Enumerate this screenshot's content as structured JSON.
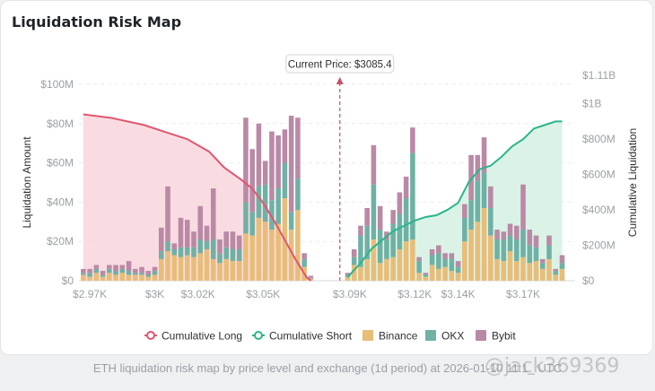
{
  "title": "Liquidation Risk Map",
  "caption": "ETH liquidation risk map by price level and exchange (1d period) at 2026-01-10 11:1_ UTC",
  "watermark": "@jack369369",
  "current_price_label": "Current Price: $3085.4",
  "colors": {
    "binance": "#e8bd78",
    "okx": "#6fb1a4",
    "bybit": "#b989a5",
    "long_line": "#e0566f",
    "long_fill": "#f8d6dd",
    "short_line": "#2bb58b",
    "short_fill": "#d7f2e4"
  },
  "chart_data": {
    "type": "bar",
    "stacked": true,
    "xlabel": "",
    "ylabel": "Liquidation Amount",
    "y2label": "Cumulative Liquidation",
    "current_price": 3085.4,
    "xlim": [
      2965,
      3194
    ],
    "ylim": [
      0,
      100000000
    ],
    "y2lim": [
      0,
      1110000000
    ],
    "x_ticks": [
      2970,
      3000,
      3020,
      3050,
      3090,
      3120,
      3140,
      3170
    ],
    "x_tick_labels": [
      "$2.97K",
      "$3K",
      "$3.02K",
      "$3.05K",
      "$3.09K",
      "$3.12K",
      "$3.14K",
      "$3.17K"
    ],
    "y_ticks": [
      0,
      20000000,
      40000000,
      60000000,
      80000000,
      100000000
    ],
    "y_tick_labels": [
      "$0",
      "$20M",
      "$40M",
      "$60M",
      "$80M",
      "$100M"
    ],
    "y2_ticks": [
      0,
      200000000,
      400000000,
      600000000,
      800000000,
      1000000000,
      1110000000
    ],
    "y2_tick_labels": [
      "$0",
      "$200M",
      "$400M",
      "$600M",
      "$800M",
      "$1B",
      "$1.11B"
    ],
    "legend": [
      "Cumulative Long",
      "Cumulative Short",
      "Binance",
      "OKX",
      "Bybit"
    ],
    "legend_position": "bottom",
    "grid": true,
    "bars": [
      {
        "x": 2967,
        "binance": 3,
        "okx": 1,
        "bybit": 2
      },
      {
        "x": 2970,
        "binance": 2,
        "okx": 2,
        "bybit": 2
      },
      {
        "x": 2973,
        "binance": 4,
        "okx": 2,
        "bybit": 2
      },
      {
        "x": 2976,
        "binance": 2,
        "okx": 1,
        "bybit": 2
      },
      {
        "x": 2979,
        "binance": 4,
        "okx": 2,
        "bybit": 2
      },
      {
        "x": 2982,
        "binance": 3,
        "okx": 2,
        "bybit": 3
      },
      {
        "x": 2985,
        "binance": 4,
        "okx": 2,
        "bybit": 2
      },
      {
        "x": 2988,
        "binance": 3,
        "okx": 2,
        "bybit": 5
      },
      {
        "x": 2991,
        "binance": 3,
        "okx": 1,
        "bybit": 2
      },
      {
        "x": 2994,
        "binance": 3,
        "okx": 1,
        "bybit": 3
      },
      {
        "x": 2997,
        "binance": 2,
        "okx": 1,
        "bybit": 2
      },
      {
        "x": 3000,
        "binance": 3,
        "okx": 2,
        "bybit": 2
      },
      {
        "x": 3003,
        "binance": 11,
        "okx": 4,
        "bybit": 12
      },
      {
        "x": 3006,
        "binance": 15,
        "okx": 5,
        "bybit": 28
      },
      {
        "x": 3009,
        "binance": 13,
        "okx": 3,
        "bybit": 3
      },
      {
        "x": 3012,
        "binance": 12,
        "okx": 5,
        "bybit": 15
      },
      {
        "x": 3015,
        "binance": 13,
        "okx": 4,
        "bybit": 14
      },
      {
        "x": 3018,
        "binance": 12,
        "okx": 5,
        "bybit": 8
      },
      {
        "x": 3021,
        "binance": 14,
        "okx": 7,
        "bybit": 17
      },
      {
        "x": 3024,
        "binance": 16,
        "okx": 4,
        "bybit": 8
      },
      {
        "x": 3027,
        "binance": 11,
        "okx": 10,
        "bybit": 26
      },
      {
        "x": 3030,
        "binance": 9,
        "okx": 5,
        "bybit": 7
      },
      {
        "x": 3033,
        "binance": 11,
        "okx": 6,
        "bybit": 8
      },
      {
        "x": 3036,
        "binance": 10,
        "okx": 6,
        "bybit": 9
      },
      {
        "x": 3039,
        "binance": 10,
        "okx": 6,
        "bybit": 7
      },
      {
        "x": 3042,
        "binance": 24,
        "okx": 16,
        "bybit": 43
      },
      {
        "x": 3045,
        "binance": 23,
        "okx": 12,
        "bybit": 32
      },
      {
        "x": 3048,
        "binance": 32,
        "okx": 16,
        "bybit": 32
      },
      {
        "x": 3051,
        "binance": 30,
        "okx": 19,
        "bybit": 12
      },
      {
        "x": 3054,
        "binance": 26,
        "okx": 15,
        "bybit": 35
      },
      {
        "x": 3057,
        "binance": 29,
        "okx": 18,
        "bybit": 27
      },
      {
        "x": 3060,
        "binance": 42,
        "okx": 18,
        "bybit": 17
      },
      {
        "x": 3063,
        "binance": 26,
        "okx": 9,
        "bybit": 49
      },
      {
        "x": 3066,
        "binance": 36,
        "okx": 16,
        "bybit": 31
      },
      {
        "x": 3069,
        "binance": 7,
        "okx": 4,
        "bybit": 3
      },
      {
        "x": 3072,
        "binance": 1,
        "okx": 0.5,
        "bybit": 1
      },
      {
        "x": 3089,
        "binance": 2,
        "okx": 1,
        "bybit": 1
      },
      {
        "x": 3092,
        "binance": 8,
        "okx": 4,
        "bybit": 4
      },
      {
        "x": 3095,
        "binance": 7,
        "okx": 16,
        "bybit": 5
      },
      {
        "x": 3098,
        "binance": 11,
        "okx": 17,
        "bybit": 9
      },
      {
        "x": 3101,
        "binance": 21,
        "okx": 28,
        "bybit": 20
      },
      {
        "x": 3104,
        "binance": 9,
        "okx": 17,
        "bybit": 12
      },
      {
        "x": 3107,
        "binance": 11,
        "okx": 10,
        "bybit": 4
      },
      {
        "x": 3110,
        "binance": 12,
        "okx": 17,
        "bybit": 7
      },
      {
        "x": 3113,
        "binance": 16,
        "okx": 18,
        "bybit": 11
      },
      {
        "x": 3116,
        "binance": 20,
        "okx": 22,
        "bybit": 11
      },
      {
        "x": 3119,
        "binance": 21,
        "okx": 44,
        "bybit": 13
      },
      {
        "x": 3122,
        "binance": 4,
        "okx": 6,
        "bybit": 2
      },
      {
        "x": 3125,
        "binance": 2,
        "okx": 1,
        "bybit": 1
      },
      {
        "x": 3128,
        "binance": 8,
        "okx": 5,
        "bybit": 3
      },
      {
        "x": 3131,
        "binance": 6,
        "okx": 8,
        "bybit": 4
      },
      {
        "x": 3134,
        "binance": 7,
        "okx": 4,
        "bybit": 3
      },
      {
        "x": 3137,
        "binance": 5,
        "okx": 6,
        "bybit": 3
      },
      {
        "x": 3140,
        "binance": 4,
        "okx": 3,
        "bybit": 3
      },
      {
        "x": 3143,
        "binance": 20,
        "okx": 12,
        "bybit": 7
      },
      {
        "x": 3146,
        "binance": 26,
        "okx": 15,
        "bybit": 23
      },
      {
        "x": 3149,
        "binance": 30,
        "okx": 21,
        "bybit": 13
      },
      {
        "x": 3152,
        "binance": 37,
        "okx": 18,
        "bybit": 18
      },
      {
        "x": 3155,
        "binance": 23,
        "okx": 14,
        "bybit": 11
      },
      {
        "x": 3158,
        "binance": 11,
        "okx": 10,
        "bybit": 5
      },
      {
        "x": 3161,
        "binance": 10,
        "okx": 11,
        "bybit": 4
      },
      {
        "x": 3164,
        "binance": 15,
        "okx": 8,
        "bybit": 6
      },
      {
        "x": 3167,
        "binance": 10,
        "okx": 11,
        "bybit": 7
      },
      {
        "x": 3170,
        "binance": 12,
        "okx": 14,
        "bybit": 23
      },
      {
        "x": 3173,
        "binance": 9,
        "okx": 9,
        "bybit": 8
      },
      {
        "x": 3176,
        "binance": 10,
        "okx": 7,
        "bybit": 6
      },
      {
        "x": 3179,
        "binance": 6,
        "okx": 3,
        "bybit": 2
      },
      {
        "x": 3182,
        "binance": 11,
        "okx": 7,
        "bybit": 5
      },
      {
        "x": 3185,
        "binance": 3,
        "okx": 2,
        "bybit": 1
      },
      {
        "x": 3188,
        "binance": 6,
        "okx": 3,
        "bybit": 4
      }
    ],
    "bar_units": "USD millions",
    "cumulative_long": {
      "x": [
        2967,
        2980,
        2995,
        3005,
        3015,
        3025,
        3032,
        3040,
        3045,
        3050,
        3055,
        3060,
        3065,
        3070,
        3072
      ],
      "y": [
        940,
        920,
        880,
        840,
        800,
        730,
        640,
        570,
        520,
        440,
        340,
        230,
        120,
        20,
        0
      ],
      "units": "USD millions"
    },
    "cumulative_short": {
      "x": [
        3089,
        3095,
        3100,
        3105,
        3110,
        3115,
        3120,
        3125,
        3130,
        3135,
        3140,
        3145,
        3150,
        3155,
        3160,
        3165,
        3170,
        3175,
        3180,
        3185,
        3188
      ],
      "y": [
        20,
        100,
        180,
        230,
        280,
        310,
        340,
        360,
        370,
        400,
        440,
        560,
        630,
        650,
        700,
        760,
        800,
        860,
        880,
        900,
        900
      ],
      "units": "USD millions"
    }
  }
}
